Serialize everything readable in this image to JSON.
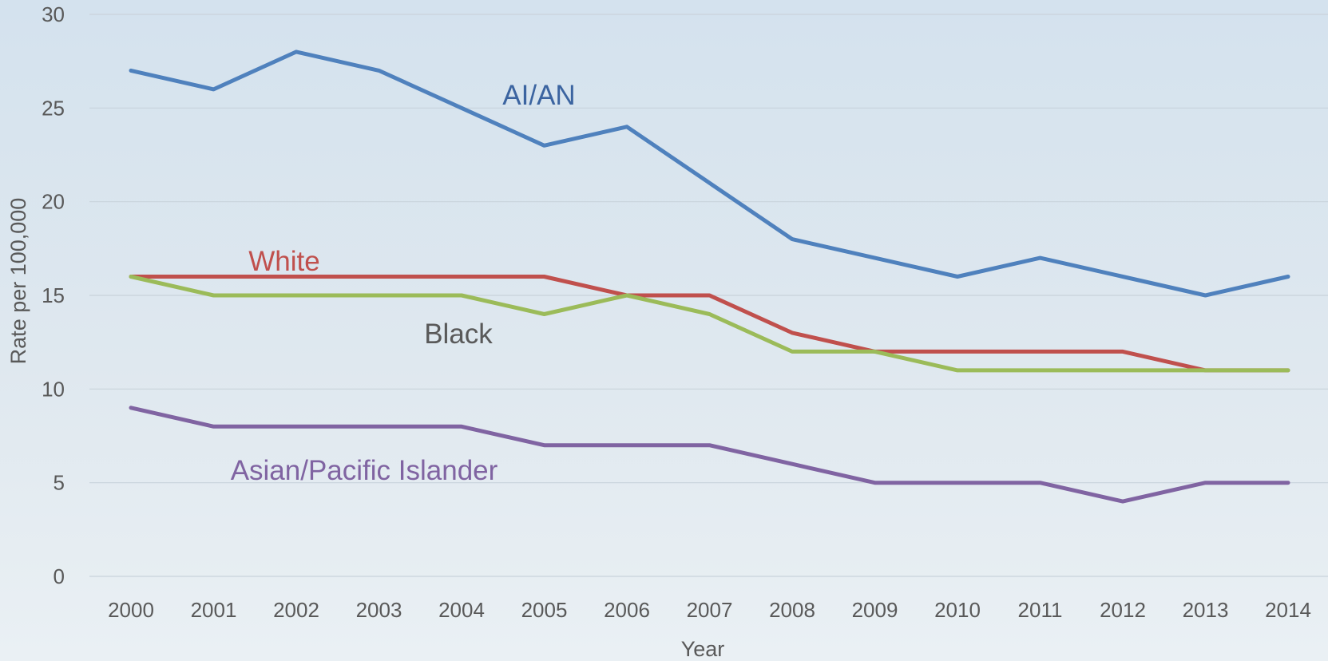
{
  "chart_data": {
    "type": "line",
    "xlabel": "Year",
    "ylabel": "Rate per 100,000",
    "ylim": [
      0,
      30
    ],
    "yticks": [
      "0",
      "5",
      "10",
      "15",
      "20",
      "25",
      "30"
    ],
    "categories": [
      "2000",
      "2001",
      "2002",
      "2003",
      "2004",
      "2005",
      "2006",
      "2007",
      "2008",
      "2009",
      "2010",
      "2011",
      "2012",
      "2013",
      "2014"
    ],
    "grid": "horizontal",
    "legend": "inline labels",
    "series": [
      {
        "name": "AI/AN",
        "color": "#4f81bd",
        "label_color": "#3b64a0",
        "values": [
          27,
          26,
          28,
          27,
          25,
          23,
          24,
          21,
          18,
          17,
          16,
          17,
          16,
          15,
          16
        ]
      },
      {
        "name": "White",
        "color": "#c0504d",
        "label_color": "#c0504d",
        "values": [
          16,
          16,
          16,
          16,
          16,
          16,
          15,
          15,
          13,
          12,
          12,
          12,
          12,
          11,
          11
        ]
      },
      {
        "name": "Black",
        "color": "#9bbb59",
        "label_color": "#595959",
        "values": [
          16,
          15,
          15,
          15,
          15,
          14,
          15,
          14,
          12,
          12,
          11,
          11,
          11,
          11,
          11
        ]
      },
      {
        "name": "Asian/Pacific Islander",
        "color": "#8064a2",
        "label_color": "#8064a2",
        "values": [
          9,
          8,
          8,
          8,
          8,
          7,
          7,
          7,
          6,
          5,
          5,
          5,
          4,
          5,
          5
        ]
      }
    ]
  }
}
